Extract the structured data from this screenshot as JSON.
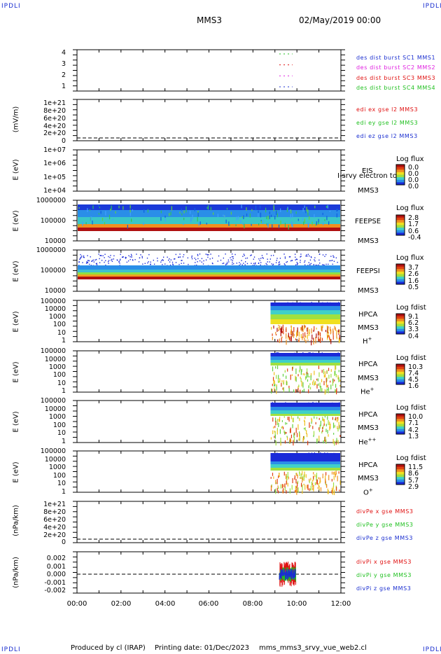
{
  "corners": {
    "tl": "IPDLI",
    "tr": "IPDLI",
    "bl": "IPDLI",
    "br": "IPDLI"
  },
  "header": {
    "spacecraft": "MMS3",
    "date": "02/May/2019 00:00"
  },
  "footer": {
    "produced": "Produced by cl (IRAP)",
    "printing": "Printing date: 01/Dec/2023",
    "file": "mms_mms3_srvy_vue_web2.cl"
  },
  "xaxis": {
    "ticks": [
      "00:00",
      "02:00",
      "04:00",
      "06:00",
      "08:00",
      "10:00",
      "12:00"
    ],
    "range_hours": [
      0,
      12
    ]
  },
  "colors": {
    "c1": "#1b2fd0",
    "c2": "#e020e0",
    "c3": "#e01010",
    "c4": "#20c020",
    "black": "#000000"
  },
  "chart_data": [
    {
      "type": "line",
      "panel": "des-dist-burst",
      "yticks": [
        "4",
        "3",
        "2",
        "1"
      ],
      "legend": [
        "des dist burst SC1 MMS1",
        "des dist burst SC2 MMS2",
        "des dist burst SC3 MMS3",
        "des dist burst SC4 MMS4"
      ],
      "series": [
        {
          "name": "des dist burst SC1 MMS1",
          "level": 1,
          "x": [
            9.2,
            9.8
          ]
        },
        {
          "name": "des dist burst SC2 MMS2",
          "level": 2,
          "x": [
            9.2,
            9.8
          ]
        },
        {
          "name": "des dist burst SC3 MMS3",
          "level": 3,
          "x": [
            9.2,
            9.8
          ]
        },
        {
          "name": "des dist burst SC4 MMS4",
          "level": 4,
          "x": [
            9.2,
            9.8
          ]
        }
      ]
    },
    {
      "type": "line",
      "panel": "edi",
      "ylabel": "(mV/m)",
      "yticks": [
        "1e+21",
        "8e+20",
        "6e+20",
        "4e+20",
        "2e+20",
        "0"
      ],
      "legend": [
        "edi ex gse l2 MMS3",
        "edi ey gse l2 MMS3",
        "edi ez gse l2 MMS3"
      ]
    },
    {
      "type": "heatmap",
      "panel": "eis",
      "ylabel": "E (eV)",
      "yticks": [
        "1e+07",
        "1e+06",
        "1e+05",
        "1e+04"
      ],
      "instrument": [
        "EIS",
        "MMS3"
      ],
      "overlay_text": "I-srvy electron to",
      "colorbar": {
        "title": "Log flux",
        "values": [
          "0.0",
          "0.0",
          "0.0",
          "0.0"
        ]
      }
    },
    {
      "type": "heatmap",
      "panel": "feeps-e",
      "ylabel": "E (eV)",
      "yticks": [
        "1000000",
        "100000",
        "10000"
      ],
      "instrument": [
        "FEEPSE",
        "MMS3"
      ],
      "colorbar": {
        "title": "Log flux",
        "values": [
          "2.8",
          "1.7",
          "0.6",
          "-0.4"
        ]
      }
    },
    {
      "type": "heatmap",
      "panel": "feeps-i",
      "ylabel": "E (eV)",
      "yticks": [
        "1000000",
        "100000",
        "10000"
      ],
      "instrument": [
        "FEEPSI",
        "MMS3"
      ],
      "colorbar": {
        "title": "Log flux",
        "values": [
          "3.7",
          "2.6",
          "1.6",
          "0.5"
        ]
      }
    },
    {
      "type": "heatmap",
      "panel": "hpca-h",
      "ylabel": "E (eV)",
      "yticks": [
        "100000",
        "10000",
        "1000",
        "100",
        "10",
        "1"
      ],
      "instrument": [
        "HPCA",
        "MMS3"
      ],
      "species": "H",
      "charge": "+",
      "colorbar": {
        "title": "Log fdist",
        "values": [
          "9.1",
          "6.2",
          "3.3",
          "0.4"
        ]
      },
      "data_start_hour": 8.8
    },
    {
      "type": "heatmap",
      "panel": "hpca-he",
      "ylabel": "E (eV)",
      "yticks": [
        "100000",
        "10000",
        "1000",
        "100",
        "10",
        "1"
      ],
      "instrument": [
        "HPCA",
        "MMS3"
      ],
      "species": "He",
      "charge": "+",
      "colorbar": {
        "title": "Log fdist",
        "values": [
          "10.3",
          "7.4",
          "4.5",
          "1.6"
        ]
      },
      "data_start_hour": 8.8
    },
    {
      "type": "heatmap",
      "panel": "hpca-he2",
      "ylabel": "E (eV)",
      "yticks": [
        "100000",
        "10000",
        "1000",
        "100",
        "10",
        "1"
      ],
      "instrument": [
        "HPCA",
        "MMS3"
      ],
      "species": "He",
      "charge": "++",
      "colorbar": {
        "title": "Log fdist",
        "values": [
          "10.0",
          "7.1",
          "4.2",
          "1.3"
        ]
      },
      "data_start_hour": 8.8
    },
    {
      "type": "heatmap",
      "panel": "hpca-o",
      "ylabel": "E (eV)",
      "yticks": [
        "100000",
        "10000",
        "1000",
        "100",
        "10",
        "1"
      ],
      "instrument": [
        "HPCA",
        "MMS3"
      ],
      "species": "O",
      "charge": "+",
      "colorbar": {
        "title": "Log fdist",
        "values": [
          "11.5",
          "8.6",
          "5.7",
          "2.9"
        ]
      },
      "data_start_hour": 8.8
    },
    {
      "type": "line",
      "panel": "divpe",
      "ylabel": "(nPa/km)",
      "yticks": [
        "1e+21",
        "8e+20",
        "6e+20",
        "4e+20",
        "2e+20",
        "0"
      ],
      "legend": [
        "divPe x gse MMS3",
        "divPe y gse MMS3",
        "divPe z gse MMS3"
      ]
    },
    {
      "type": "line",
      "panel": "divpi",
      "ylabel": "(nPa/km)",
      "yticks": [
        "0.002",
        "0.001",
        "0.000",
        "-0.001",
        "-0.002"
      ],
      "ylim": [
        -0.0025,
        0.0025
      ],
      "legend": [
        "divPi x gse MMS3",
        "divPi y gse MMS3",
        "divPi z gse MMS3"
      ],
      "data_range_hours": [
        9.2,
        9.95
      ]
    }
  ]
}
